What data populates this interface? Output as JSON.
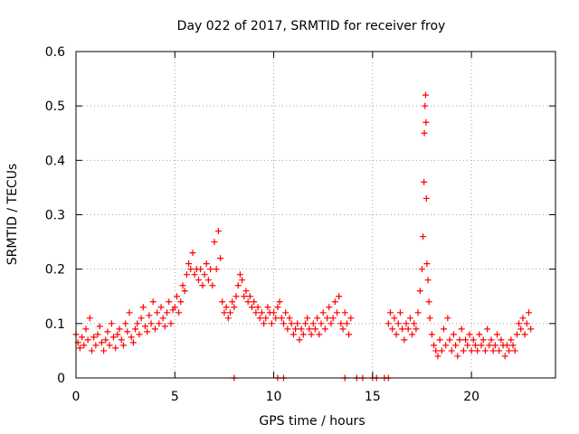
{
  "chart_data": {
    "type": "scatter",
    "title": "Day 022 of 2017, SRMTID for receiver froy",
    "xlabel": "GPS time / hours",
    "ylabel": "SRMTID / TECUs",
    "xlim": [
      0,
      24.25
    ],
    "ylim": [
      0,
      0.6
    ],
    "x_ticks": [
      0,
      5,
      10,
      15,
      20
    ],
    "x_tick_labels": [
      "0",
      "5",
      "10",
      "15",
      "20"
    ],
    "y_ticks": [
      0,
      0.1,
      0.2,
      0.3,
      0.4,
      0.5,
      0.6
    ],
    "y_tick_labels": [
      "0",
      "0.1",
      "0.2",
      "0.3",
      "0.4",
      "0.5",
      "0.6"
    ],
    "grid": true,
    "marker": "plus",
    "color": "#ff0000",
    "series": [
      {
        "name": "SRMTID",
        "points": [
          [
            0.0,
            0.08
          ],
          [
            0.1,
            0.065
          ],
          [
            0.2,
            0.055
          ],
          [
            0.3,
            0.075
          ],
          [
            0.4,
            0.06
          ],
          [
            0.5,
            0.09
          ],
          [
            0.6,
            0.07
          ],
          [
            0.7,
            0.11
          ],
          [
            0.8,
            0.05
          ],
          [
            0.9,
            0.075
          ],
          [
            1.0,
            0.06
          ],
          [
            1.1,
            0.08
          ],
          [
            1.2,
            0.095
          ],
          [
            1.3,
            0.065
          ],
          [
            1.4,
            0.05
          ],
          [
            1.5,
            0.07
          ],
          [
            1.6,
            0.085
          ],
          [
            1.7,
            0.06
          ],
          [
            1.8,
            0.1
          ],
          [
            1.9,
            0.075
          ],
          [
            2.0,
            0.055
          ],
          [
            2.1,
            0.08
          ],
          [
            2.2,
            0.09
          ],
          [
            2.3,
            0.07
          ],
          [
            2.4,
            0.06
          ],
          [
            2.5,
            0.1
          ],
          [
            2.6,
            0.085
          ],
          [
            2.7,
            0.12
          ],
          [
            2.8,
            0.075
          ],
          [
            2.9,
            0.065
          ],
          [
            3.0,
            0.09
          ],
          [
            3.1,
            0.1
          ],
          [
            3.2,
            0.08
          ],
          [
            3.3,
            0.11
          ],
          [
            3.4,
            0.13
          ],
          [
            3.5,
            0.095
          ],
          [
            3.6,
            0.085
          ],
          [
            3.7,
            0.115
          ],
          [
            3.8,
            0.1
          ],
          [
            3.9,
            0.14
          ],
          [
            4.0,
            0.09
          ],
          [
            4.1,
            0.12
          ],
          [
            4.2,
            0.1
          ],
          [
            4.3,
            0.13
          ],
          [
            4.4,
            0.11
          ],
          [
            4.5,
            0.095
          ],
          [
            4.6,
            0.12
          ],
          [
            4.7,
            0.14
          ],
          [
            4.8,
            0.1
          ],
          [
            4.9,
            0.125
          ],
          [
            5.0,
            0.13
          ],
          [
            5.1,
            0.15
          ],
          [
            5.2,
            0.12
          ],
          [
            5.3,
            0.14
          ],
          [
            5.4,
            0.17
          ],
          [
            5.5,
            0.16
          ],
          [
            5.6,
            0.19
          ],
          [
            5.7,
            0.21
          ],
          [
            5.8,
            0.2
          ],
          [
            5.9,
            0.23
          ],
          [
            6.0,
            0.19
          ],
          [
            6.1,
            0.2
          ],
          [
            6.2,
            0.18
          ],
          [
            6.3,
            0.2
          ],
          [
            6.4,
            0.17
          ],
          [
            6.5,
            0.19
          ],
          [
            6.6,
            0.21
          ],
          [
            6.7,
            0.18
          ],
          [
            6.8,
            0.2
          ],
          [
            6.9,
            0.17
          ],
          [
            7.0,
            0.25
          ],
          [
            7.1,
            0.2
          ],
          [
            7.2,
            0.27
          ],
          [
            7.3,
            0.22
          ],
          [
            7.4,
            0.14
          ],
          [
            7.5,
            0.12
          ],
          [
            7.6,
            0.13
          ],
          [
            7.7,
            0.11
          ],
          [
            7.8,
            0.12
          ],
          [
            7.9,
            0.14
          ],
          [
            8.0,
            0.13
          ],
          [
            8.1,
            0.15
          ],
          [
            8.2,
            0.17
          ],
          [
            8.3,
            0.19
          ],
          [
            8.4,
            0.18
          ],
          [
            8.5,
            0.15
          ],
          [
            8.6,
            0.16
          ],
          [
            8.7,
            0.14
          ],
          [
            8.8,
            0.15
          ],
          [
            8.9,
            0.13
          ],
          [
            9.0,
            0.14
          ],
          [
            9.1,
            0.12
          ],
          [
            9.2,
            0.13
          ],
          [
            9.3,
            0.11
          ],
          [
            9.4,
            0.12
          ],
          [
            9.5,
            0.1
          ],
          [
            9.6,
            0.11
          ],
          [
            9.7,
            0.13
          ],
          [
            9.8,
            0.12
          ],
          [
            9.9,
            0.1
          ],
          [
            10.0,
            0.12
          ],
          [
            10.1,
            0.11
          ],
          [
            10.2,
            0.13
          ],
          [
            10.3,
            0.14
          ],
          [
            10.4,
            0.11
          ],
          [
            10.5,
            0.1
          ],
          [
            10.6,
            0.12
          ],
          [
            10.7,
            0.09
          ],
          [
            10.8,
            0.11
          ],
          [
            10.9,
            0.1
          ],
          [
            11.0,
            0.08
          ],
          [
            11.1,
            0.09
          ],
          [
            11.2,
            0.1
          ],
          [
            11.3,
            0.07
          ],
          [
            11.4,
            0.09
          ],
          [
            11.5,
            0.08
          ],
          [
            11.6,
            0.1
          ],
          [
            11.7,
            0.11
          ],
          [
            11.8,
            0.09
          ],
          [
            11.9,
            0.08
          ],
          [
            12.0,
            0.1
          ],
          [
            12.1,
            0.09
          ],
          [
            12.2,
            0.11
          ],
          [
            12.3,
            0.08
          ],
          [
            12.4,
            0.1
          ],
          [
            12.5,
            0.12
          ],
          [
            12.6,
            0.09
          ],
          [
            12.7,
            0.11
          ],
          [
            12.8,
            0.13
          ],
          [
            12.9,
            0.1
          ],
          [
            13.0,
            0.11
          ],
          [
            13.1,
            0.14
          ],
          [
            13.2,
            0.12
          ],
          [
            13.3,
            0.15
          ],
          [
            13.4,
            0.1
          ],
          [
            13.5,
            0.09
          ],
          [
            13.6,
            0.12
          ],
          [
            13.7,
            0.1
          ],
          [
            13.8,
            0.08
          ],
          [
            13.9,
            0.11
          ],
          [
            8.0,
            0.0
          ],
          [
            10.2,
            0.0
          ],
          [
            10.5,
            0.0
          ],
          [
            13.6,
            0.0
          ],
          [
            14.2,
            0.0
          ],
          [
            14.5,
            0.0
          ],
          [
            15.0,
            0.0
          ],
          [
            15.2,
            0.0
          ],
          [
            15.6,
            0.0
          ],
          [
            15.8,
            0.0
          ],
          [
            15.8,
            0.1
          ],
          [
            15.9,
            0.12
          ],
          [
            16.0,
            0.09
          ],
          [
            16.1,
            0.11
          ],
          [
            16.2,
            0.08
          ],
          [
            16.3,
            0.1
          ],
          [
            16.4,
            0.12
          ],
          [
            16.5,
            0.09
          ],
          [
            16.6,
            0.07
          ],
          [
            16.7,
            0.1
          ],
          [
            16.8,
            0.09
          ],
          [
            16.9,
            0.11
          ],
          [
            17.0,
            0.08
          ],
          [
            17.1,
            0.1
          ],
          [
            17.2,
            0.09
          ],
          [
            17.3,
            0.12
          ],
          [
            17.4,
            0.16
          ],
          [
            17.5,
            0.2
          ],
          [
            17.55,
            0.26
          ],
          [
            17.6,
            0.36
          ],
          [
            17.62,
            0.45
          ],
          [
            17.65,
            0.5
          ],
          [
            17.68,
            0.52
          ],
          [
            17.7,
            0.47
          ],
          [
            17.72,
            0.33
          ],
          [
            17.75,
            0.21
          ],
          [
            17.8,
            0.18
          ],
          [
            17.85,
            0.14
          ],
          [
            17.9,
            0.11
          ],
          [
            18.0,
            0.08
          ],
          [
            18.1,
            0.06
          ],
          [
            18.2,
            0.05
          ],
          [
            18.3,
            0.04
          ],
          [
            18.4,
            0.07
          ],
          [
            18.5,
            0.05
          ],
          [
            18.6,
            0.09
          ],
          [
            18.7,
            0.06
          ],
          [
            18.8,
            0.11
          ],
          [
            18.9,
            0.07
          ],
          [
            19.0,
            0.05
          ],
          [
            19.1,
            0.08
          ],
          [
            19.2,
            0.06
          ],
          [
            19.3,
            0.04
          ],
          [
            19.4,
            0.07
          ],
          [
            19.5,
            0.09
          ],
          [
            19.6,
            0.05
          ],
          [
            19.7,
            0.07
          ],
          [
            19.8,
            0.06
          ],
          [
            19.9,
            0.08
          ],
          [
            20.0,
            0.05
          ],
          [
            20.1,
            0.07
          ],
          [
            20.2,
            0.06
          ],
          [
            20.3,
            0.05
          ],
          [
            20.4,
            0.08
          ],
          [
            20.5,
            0.06
          ],
          [
            20.6,
            0.07
          ],
          [
            20.7,
            0.05
          ],
          [
            20.8,
            0.09
          ],
          [
            20.9,
            0.06
          ],
          [
            21.0,
            0.07
          ],
          [
            21.1,
            0.05
          ],
          [
            21.2,
            0.06
          ],
          [
            21.3,
            0.08
          ],
          [
            21.4,
            0.05
          ],
          [
            21.5,
            0.07
          ],
          [
            21.6,
            0.06
          ],
          [
            21.7,
            0.04
          ],
          [
            21.8,
            0.06
          ],
          [
            21.9,
            0.05
          ],
          [
            22.0,
            0.07
          ],
          [
            22.1,
            0.06
          ],
          [
            22.2,
            0.05
          ],
          [
            22.3,
            0.08
          ],
          [
            22.4,
            0.1
          ],
          [
            22.5,
            0.09
          ],
          [
            22.6,
            0.11
          ],
          [
            22.7,
            0.08
          ],
          [
            22.8,
            0.1
          ],
          [
            22.9,
            0.12
          ],
          [
            23.0,
            0.09
          ]
        ]
      }
    ]
  }
}
